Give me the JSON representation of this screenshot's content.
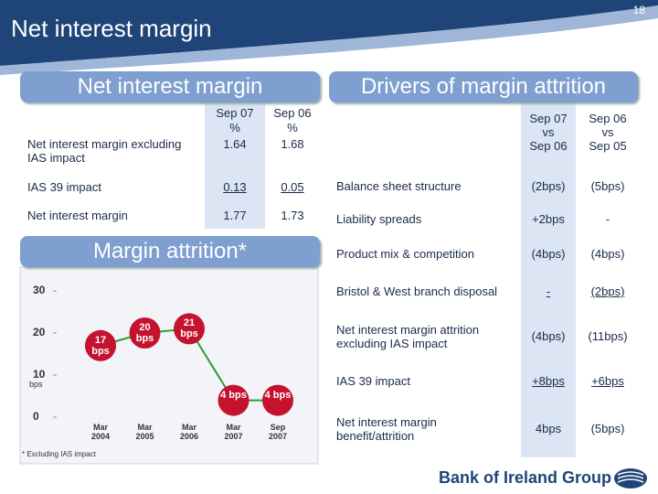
{
  "header": {
    "title": "Net interest margin",
    "page_number": "18"
  },
  "left_panel": {
    "heading": "Net interest margin",
    "columns": [
      [
        "Sep 07",
        "%"
      ],
      [
        "Sep 06",
        "%"
      ]
    ],
    "rows": [
      {
        "label": "Net interest margin excluding IAS impact",
        "values": [
          1.64,
          1.68
        ]
      },
      {
        "label": "IAS 39 impact",
        "values": [
          0.13,
          0.05
        ],
        "underline": true
      },
      {
        "label": "Net interest margin",
        "values": [
          1.77,
          1.73
        ]
      }
    ]
  },
  "right_panel": {
    "heading": "Drivers of margin attrition",
    "columns": [
      [
        "Sep 07",
        "vs",
        "Sep 06"
      ],
      [
        "Sep 06",
        "vs",
        "Sep 05"
      ]
    ],
    "rows": [
      {
        "label": "Balance sheet structure",
        "values": [
          "(2bps)",
          "(5bps)"
        ]
      },
      {
        "label": "Liability spreads",
        "values": [
          "+2bps",
          "-"
        ]
      },
      {
        "label": "Product mix & competition",
        "values": [
          "(4bps)",
          "(4bps)"
        ]
      },
      {
        "label": "Bristol & West branch disposal",
        "values": [
          "-",
          "(2bps)"
        ],
        "underline": true
      },
      {
        "label": "Net interest margin attrition excluding IAS impact",
        "values": [
          "(4bps)",
          "(11bps)"
        ]
      },
      {
        "label": "IAS 39 impact",
        "values": [
          "+8bps",
          "+6bps"
        ],
        "underline": true
      },
      {
        "label": "Net interest margin benefit/attrition",
        "values": [
          "4bps",
          "(5bps)"
        ]
      }
    ]
  },
  "chart_data": {
    "type": "line",
    "title": "Margin attrition*",
    "categories": [
      "Mar 2004",
      "Mar 2005",
      "Mar 2006",
      "Mar 2007",
      "Sep 2007"
    ],
    "values": [
      17,
      20,
      21,
      4,
      4
    ],
    "value_labels": [
      "17 bps",
      "20 bps",
      "21 bps",
      "4 bps",
      "4 bps"
    ],
    "color": "#c4122f",
    "line_color": "#2f9a3a",
    "ylabel": "bps",
    "ylim": [
      0,
      30
    ],
    "yticks": [
      0,
      10,
      20,
      30
    ],
    "footnote": "* Excluding IAS impact"
  },
  "footer": {
    "logo": "Bank of Ireland Group"
  }
}
